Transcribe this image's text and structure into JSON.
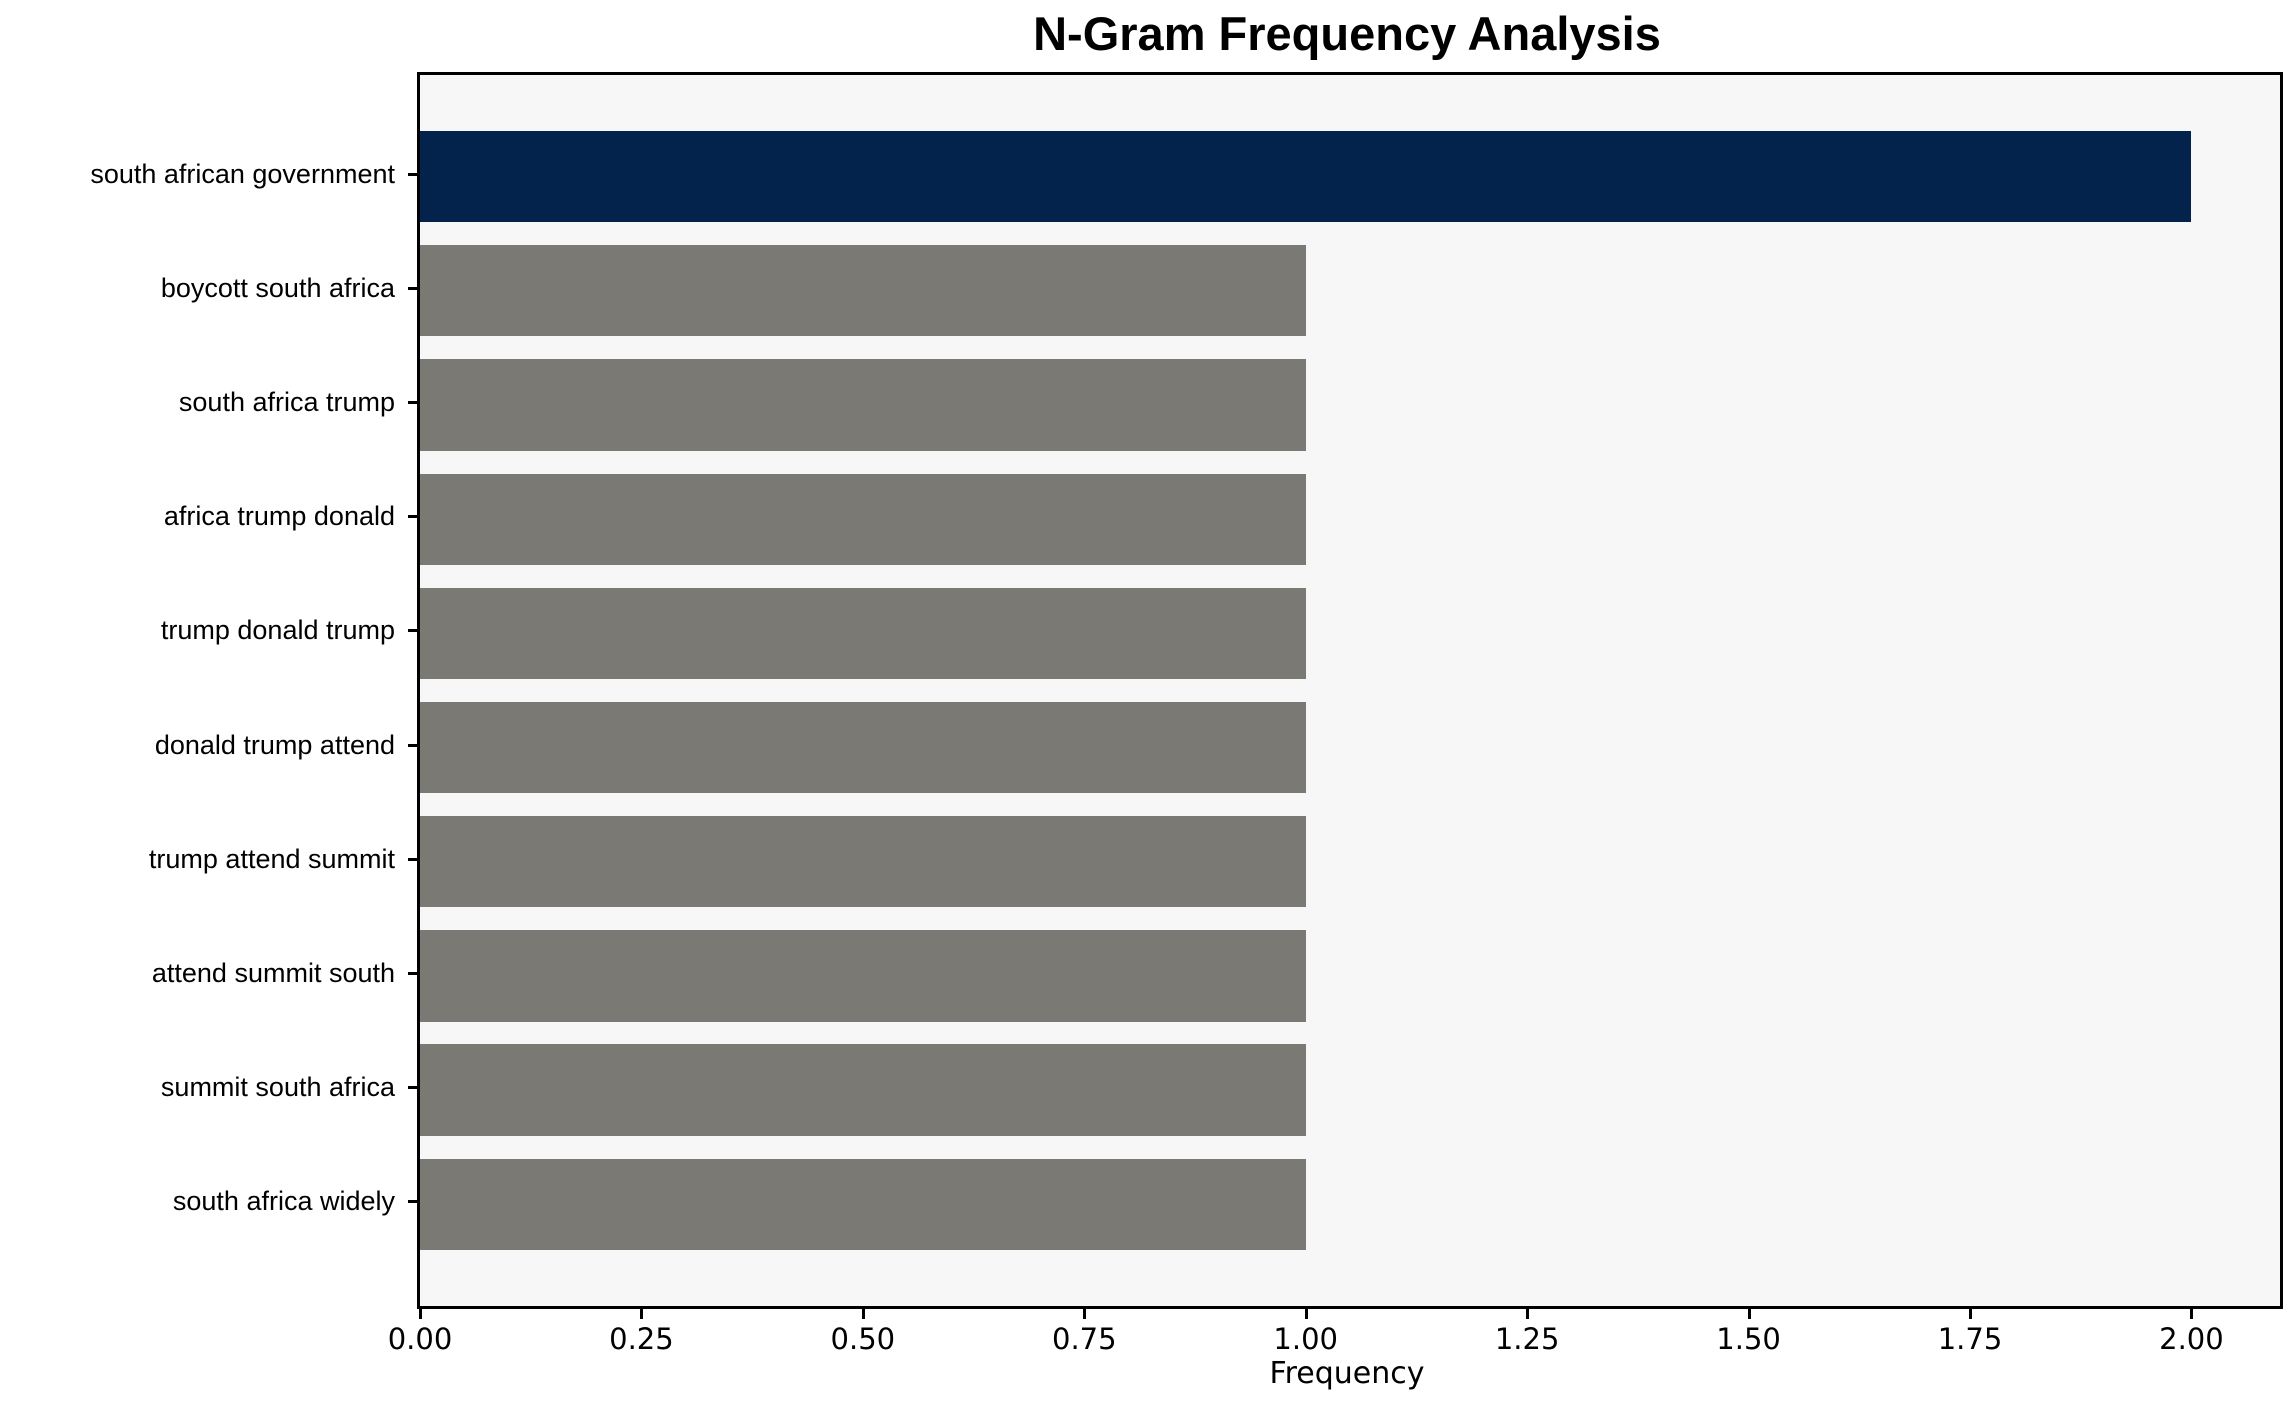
{
  "title": "N-Gram Frequency Analysis",
  "chart_data": {
    "type": "bar",
    "orientation": "horizontal",
    "title": "N-Gram Frequency Analysis",
    "xlabel": "Frequency",
    "ylabel": "",
    "categories": [
      "south african government",
      "boycott south africa",
      "south africa trump",
      "africa trump donald",
      "trump donald trump",
      "donald trump attend",
      "trump attend summit",
      "attend summit south",
      "summit south africa",
      "south africa widely"
    ],
    "values": [
      2,
      1,
      1,
      1,
      1,
      1,
      1,
      1,
      1,
      1
    ],
    "bar_colors": [
      "#03234d",
      "#7b7974",
      "#7b7974",
      "#7b7974",
      "#7b7974",
      "#7b7974",
      "#7b7974",
      "#7b7974",
      "#7b7974",
      "#7b7974"
    ],
    "highlight_color": "#03234d",
    "default_color": "#7b7974",
    "plot_background": "#f7f7f7",
    "axis_color": "#000000",
    "xlim": [
      0,
      2.1
    ],
    "xticks": [
      0,
      0.25,
      0.5,
      0.75,
      1.0,
      1.25,
      1.5,
      1.75,
      2.0
    ],
    "xtick_labels": [
      "0.00",
      "0.25",
      "0.50",
      "0.75",
      "1.00",
      "1.25",
      "1.50",
      "1.75",
      "2.00"
    ],
    "grid": false,
    "legend": null
  }
}
